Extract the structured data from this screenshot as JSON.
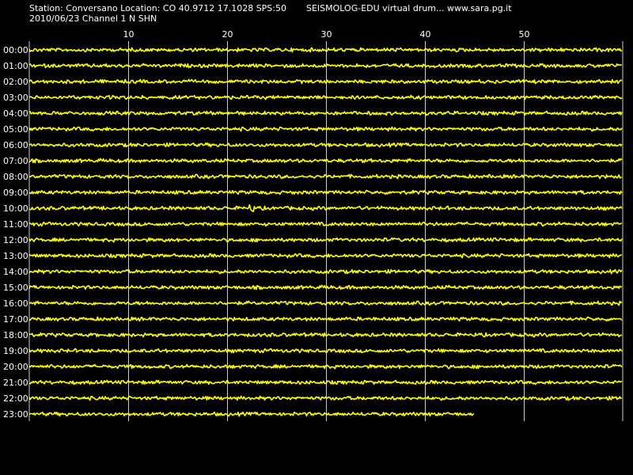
{
  "header": {
    "station_line": "Station: Conversano Location: CO 40.9712 17.1028 SPS:50",
    "date_channel_line": "2010/06/23  Channel 1 N SHN",
    "app_title": "SEISMOLOG-EDU virtual drum... www.sara.pg.it"
  },
  "colors": {
    "background": "#000000",
    "trace": "#ffff00",
    "grid": "#cccccc",
    "text": "#ffffff"
  },
  "chart_data": {
    "type": "line",
    "title": "SEISMOLOG-EDU virtual drum... www.sara.pg.it",
    "xlabel": "",
    "ylabel": "",
    "xlim": [
      0,
      60
    ],
    "x_ticks": [
      "10",
      "20",
      "30",
      "40",
      "50"
    ],
    "x_tick_values": [
      10,
      20,
      30,
      40,
      50
    ],
    "grid": true,
    "hours": [
      "00:00",
      "01:00",
      "02:00",
      "03:00",
      "04:00",
      "05:00",
      "06:00",
      "07:00",
      "08:00",
      "09:00",
      "10:00",
      "11:00",
      "12:00",
      "13:00",
      "14:00",
      "15:00",
      "16:00",
      "17:00",
      "18:00",
      "19:00",
      "20:00",
      "21:00",
      "22:00",
      "23:00"
    ],
    "trace_end_minute": [
      60,
      60,
      60,
      60,
      60,
      60,
      60,
      60,
      60,
      60,
      60,
      60,
      60,
      60,
      60,
      60,
      60,
      60,
      60,
      60,
      60,
      60,
      60,
      45
    ],
    "events": [
      {
        "hour": "10:00",
        "minute": 22.5,
        "amplitude": "small"
      }
    ]
  }
}
